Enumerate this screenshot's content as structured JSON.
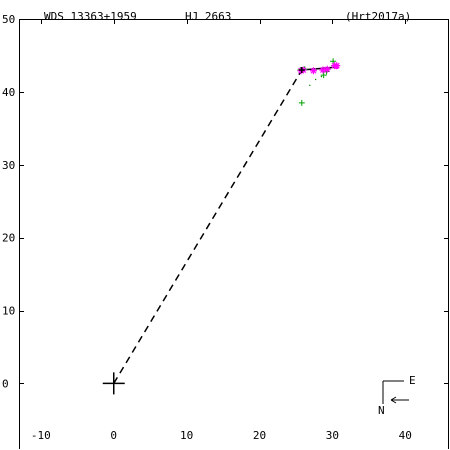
{
  "header": {
    "wds_id": "WDS 13363+1959",
    "discoverer": "HJ 2663",
    "orbit_ref": "(Hrt2017a)"
  },
  "orientation": {
    "east_label": "E",
    "north_label": "N"
  },
  "colors": {
    "orbit": "#000000",
    "observations": "#00a000",
    "speckle": "#ff00ff",
    "dotted": "#008000"
  },
  "chart_data": {
    "type": "scatter",
    "x_ticks": [
      -10,
      0,
      10,
      20,
      30,
      40
    ],
    "y_ticks": [
      0,
      10,
      20,
      30,
      40,
      50
    ],
    "xlim": [
      -13,
      46
    ],
    "ylim": [
      -9,
      50
    ],
    "grid": false,
    "primary": [
      0,
      0
    ],
    "orbit_arc": [
      [
        25.8,
        43.0
      ],
      [
        30.6,
        43.4
      ]
    ],
    "node_line": [
      [
        0,
        0
      ],
      [
        25.8,
        43.0
      ]
    ],
    "orbit_end_marker": [
      30.6,
      43.4
    ],
    "observations_visual": [
      [
        25.8,
        38.5
      ],
      [
        28.8,
        42.3
      ],
      [
        29.2,
        42.8
      ],
      [
        30.1,
        44.2
      ],
      [
        25.6,
        43.0
      ],
      [
        26.2,
        43.1
      ]
    ],
    "observations_speckle": [
      [
        25.7,
        42.9
      ],
      [
        26.0,
        43.0
      ],
      [
        27.4,
        42.9
      ],
      [
        28.7,
        43.0
      ],
      [
        29.3,
        43.1
      ],
      [
        30.3,
        43.6
      ],
      [
        30.6,
        43.6
      ]
    ],
    "residual_dots": [
      [
        26.9,
        40.9
      ],
      [
        27.7,
        41.7
      ],
      [
        28.5,
        42.1
      ]
    ]
  }
}
